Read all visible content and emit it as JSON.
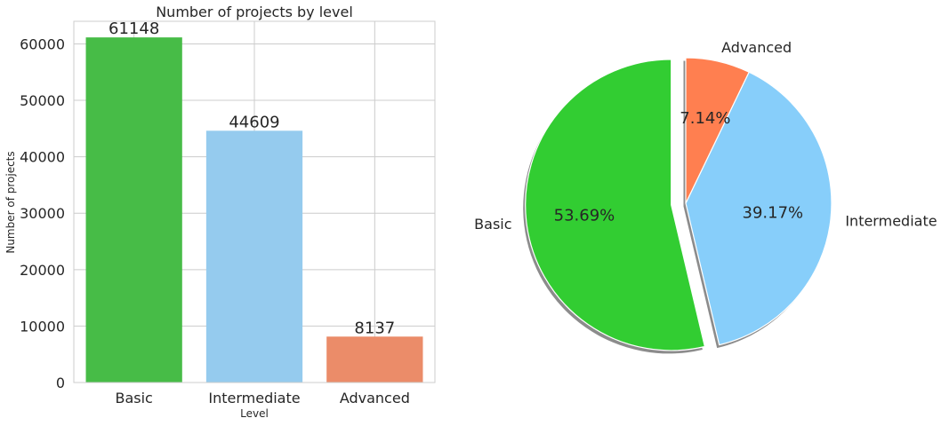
{
  "chart_data": [
    {
      "type": "bar",
      "title": "Number of projects by level",
      "xlabel": "Level",
      "ylabel": "Number of projects",
      "categories": [
        "Basic",
        "Intermediate",
        "Advanced"
      ],
      "values": [
        61148,
        44609,
        8137
      ],
      "value_labels": [
        "61148",
        "44609",
        "8137"
      ],
      "ylim": [
        0,
        64000
      ],
      "yticks": [
        0,
        10000,
        20000,
        30000,
        40000,
        50000,
        60000
      ],
      "ytick_labels": [
        "0",
        "10000",
        "20000",
        "30000",
        "40000",
        "50000",
        "60000"
      ],
      "colors": [
        "#47bc47",
        "#95cbee",
        "#eb8c69"
      ],
      "grid": true
    },
    {
      "type": "pie",
      "labels": [
        "Basic",
        "Intermediate",
        "Advanced"
      ],
      "values": [
        53.69,
        39.17,
        7.14
      ],
      "pct_labels": [
        "53.69%",
        "39.17%",
        "7.14%"
      ],
      "colors": [
        "#32cd32",
        "#87cefa",
        "#ff7f50"
      ],
      "explode": [
        0.1,
        0,
        0
      ],
      "startangle": 90,
      "shadow": true
    }
  ]
}
